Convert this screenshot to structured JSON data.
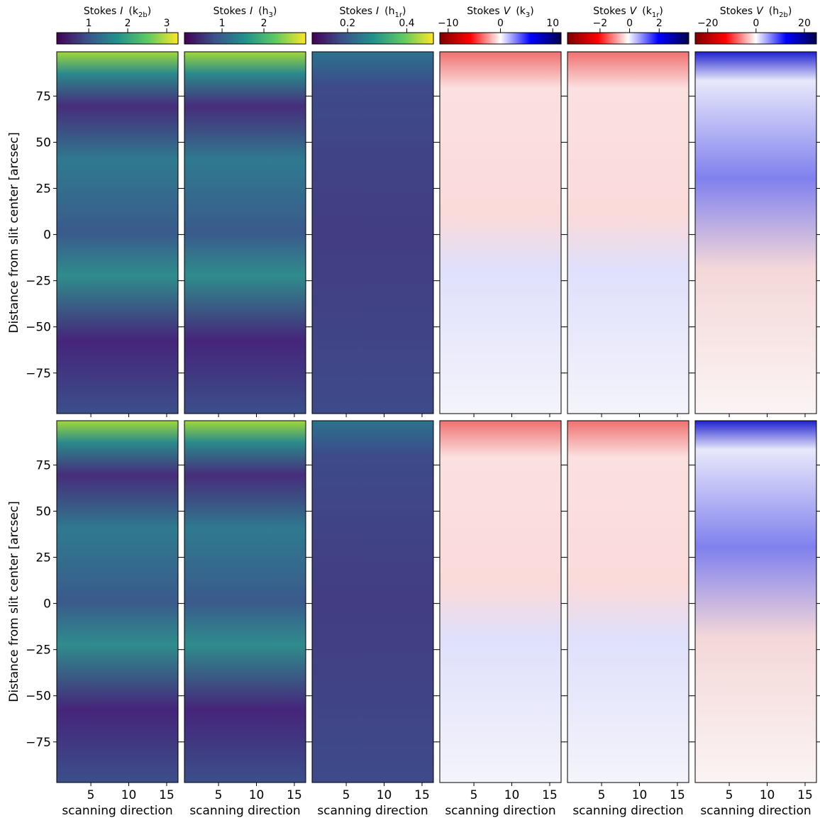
{
  "chart_data": {
    "type": "heatmap",
    "xlabel": "scanning direction",
    "ylabel": "Distance from slit center [arcsec]",
    "xlim": [
      0.5,
      16.5
    ],
    "xticks": [
      5,
      10,
      15
    ],
    "ylim": [
      -97,
      99
    ],
    "yticks": [
      {
        "value": -75,
        "label": "−75"
      },
      {
        "value": -50,
        "label": "−50"
      },
      {
        "value": -25,
        "label": "−25"
      },
      0,
      25,
      50,
      75
    ],
    "panels": [
      {
        "prefix": "Stokes",
        "stokes": "I",
        "line": "k",
        "line_sub": "2b",
        "colormap": "viridis",
        "clim": [
          0.18,
          3.29
        ],
        "cticks": [
          1,
          2,
          3
        ]
      },
      {
        "prefix": "Stokes",
        "stokes": "I",
        "line": "h",
        "line_sub": "3",
        "colormap": "viridis",
        "clim": [
          0.1,
          3.0
        ],
        "cticks": [
          1,
          2
        ]
      },
      {
        "prefix": "Stokes",
        "stokes": "I",
        "line": "h",
        "line_sub": "1r",
        "colormap": "viridis",
        "clim": [
          0.08,
          0.49
        ],
        "cticks": [
          0.2,
          0.4
        ]
      },
      {
        "prefix": "Stokes",
        "stokes": "V",
        "line": "k",
        "line_sub": "3",
        "colormap": "seismic",
        "clim": [
          -11.6,
          11.6
        ],
        "cticks": [
          {
            "value": -10,
            "label": "−10"
          },
          0,
          10
        ]
      },
      {
        "prefix": "Stokes",
        "stokes": "V",
        "line": "k",
        "line_sub": "1r",
        "colormap": "seismic",
        "clim": [
          -4.2,
          4.0
        ],
        "cticks": [
          {
            "value": -2,
            "label": "−2"
          },
          0,
          2
        ]
      },
      {
        "prefix": "Stokes",
        "stokes": "V",
        "line": "h",
        "line_sub": "2b",
        "colormap": "seismic",
        "clim": [
          -25.2,
          25
        ],
        "cticks": [
          {
            "value": -20,
            "label": "−20"
          },
          0,
          20
        ]
      }
    ]
  }
}
